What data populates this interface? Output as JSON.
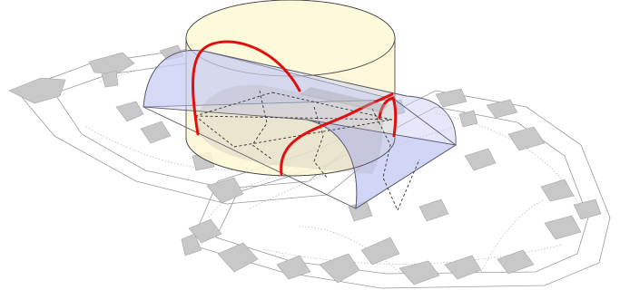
{
  "colors": {
    "background": "#ffffff",
    "floor_shape_fill": "#c8c8c8",
    "floor_shape_stroke": "#a6a6a6",
    "floor_outline": "#9a9a9a",
    "floor_guide": "#b5b5b5",
    "cylinder_fill": "#fbf7d2",
    "cylinder_stroke": "#4a4a4a",
    "vault_fill": "#c7cdf5",
    "vault_stroke": "#5a5a6e",
    "intersection_curve": "#e01010",
    "construction_line": "#333333"
  }
}
